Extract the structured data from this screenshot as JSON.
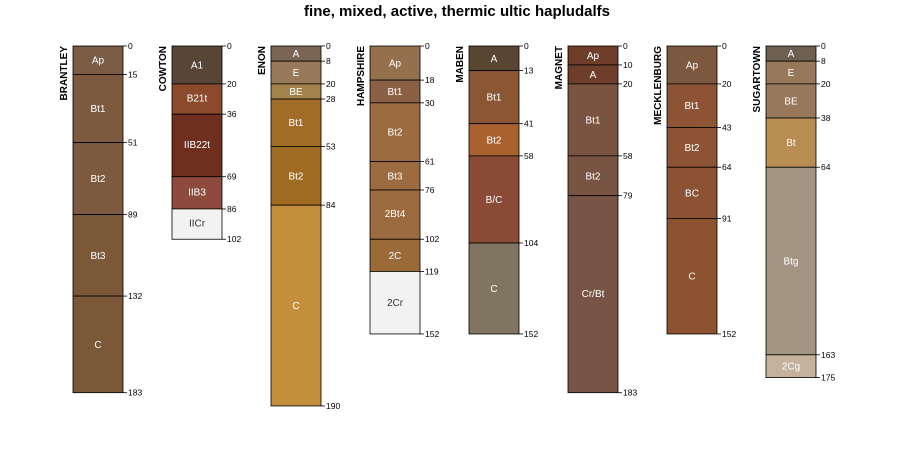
{
  "chart_data": {
    "type": "soil-profile-sketch",
    "title": "fine, mixed, active, thermic ultic hapludalfs",
    "depth_unit": "cm",
    "ylim": [
      0,
      190
    ],
    "profiles": [
      {
        "name": "BRANTLEY",
        "horizons": [
          {
            "name": "Ap",
            "top": 0,
            "bottom": 15,
            "color": "#7a5b44"
          },
          {
            "name": "Bt1",
            "top": 15,
            "bottom": 51,
            "color": "#7d5a3d"
          },
          {
            "name": "Bt2",
            "top": 51,
            "bottom": 89,
            "color": "#7d5a3d"
          },
          {
            "name": "Bt3",
            "top": 89,
            "bottom": 132,
            "color": "#7a5838"
          },
          {
            "name": "C",
            "top": 132,
            "bottom": 183,
            "color": "#7a5838"
          }
        ]
      },
      {
        "name": "COWTON",
        "horizons": [
          {
            "name": "A1",
            "top": 0,
            "bottom": 20,
            "color": "#574636"
          },
          {
            "name": "B21t",
            "top": 20,
            "bottom": 36,
            "color": "#8b4a2c"
          },
          {
            "name": "IIB22t",
            "top": 36,
            "bottom": 69,
            "color": "#6e2f1f"
          },
          {
            "name": "IIB3",
            "top": 69,
            "bottom": 86,
            "color": "#8e4b3d"
          },
          {
            "name": "IICr",
            "top": 86,
            "bottom": 102,
            "color": "#f2f2f2"
          }
        ]
      },
      {
        "name": "ENON",
        "horizons": [
          {
            "name": "A",
            "top": 0,
            "bottom": 8,
            "color": "#7a6554"
          },
          {
            "name": "E",
            "top": 8,
            "bottom": 20,
            "color": "#98795a"
          },
          {
            "name": "BE",
            "top": 20,
            "bottom": 28,
            "color": "#a3824c"
          },
          {
            "name": "Bt1",
            "top": 28,
            "bottom": 53,
            "color": "#a06c28"
          },
          {
            "name": "Bt2",
            "top": 53,
            "bottom": 84,
            "color": "#a06c22"
          },
          {
            "name": "C",
            "top": 84,
            "bottom": 190,
            "color": "#c48e3c"
          }
        ]
      },
      {
        "name": "HAMPSHIRE",
        "horizons": [
          {
            "name": "Ap",
            "top": 0,
            "bottom": 18,
            "color": "#94704c"
          },
          {
            "name": "Bt1",
            "top": 18,
            "bottom": 30,
            "color": "#8a6144"
          },
          {
            "name": "Bt2",
            "top": 30,
            "bottom": 61,
            "color": "#9c6c40"
          },
          {
            "name": "Bt3",
            "top": 61,
            "bottom": 76,
            "color": "#9c6c40"
          },
          {
            "name": "2Bt4",
            "top": 76,
            "bottom": 102,
            "color": "#9c6c40"
          },
          {
            "name": "2C",
            "top": 102,
            "bottom": 119,
            "color": "#9a6a38"
          },
          {
            "name": "2Cr",
            "top": 119,
            "bottom": 152,
            "color": "#f2f2f2"
          }
        ]
      },
      {
        "name": "MABEN",
        "horizons": [
          {
            "name": "A",
            "top": 0,
            "bottom": 13,
            "color": "#594632"
          },
          {
            "name": "Bt1",
            "top": 13,
            "bottom": 41,
            "color": "#8a5634"
          },
          {
            "name": "Bt2",
            "top": 41,
            "bottom": 58,
            "color": "#a9622e"
          },
          {
            "name": "B/C",
            "top": 58,
            "bottom": 104,
            "color": "#8a4a36"
          },
          {
            "name": "C",
            "top": 104,
            "bottom": 152,
            "color": "#807560"
          }
        ]
      },
      {
        "name": "MAGNET",
        "horizons": [
          {
            "name": "Ap",
            "top": 0,
            "bottom": 10,
            "color": "#6e3e2a"
          },
          {
            "name": "A",
            "top": 10,
            "bottom": 20,
            "color": "#6e3e2a"
          },
          {
            "name": "Bt1",
            "top": 20,
            "bottom": 58,
            "color": "#7a5440"
          },
          {
            "name": "Bt2",
            "top": 58,
            "bottom": 79,
            "color": "#785442"
          },
          {
            "name": "Cr/Bt",
            "top": 79,
            "bottom": 183,
            "color": "#785446"
          }
        ]
      },
      {
        "name": "MECKLENBURG",
        "horizons": [
          {
            "name": "Ap",
            "top": 0,
            "bottom": 20,
            "color": "#7d5840"
          },
          {
            "name": "Bt1",
            "top": 20,
            "bottom": 43,
            "color": "#8c5434"
          },
          {
            "name": "Bt2",
            "top": 43,
            "bottom": 64,
            "color": "#8c5434"
          },
          {
            "name": "BC",
            "top": 64,
            "bottom": 91,
            "color": "#8c5234"
          },
          {
            "name": "C",
            "top": 91,
            "bottom": 152,
            "color": "#8c5230"
          }
        ]
      },
      {
        "name": "SUGARTOWN",
        "horizons": [
          {
            "name": "A",
            "top": 0,
            "bottom": 8,
            "color": "#6e6050"
          },
          {
            "name": "E",
            "top": 8,
            "bottom": 20,
            "color": "#98785a"
          },
          {
            "name": "BE",
            "top": 20,
            "bottom": 38,
            "color": "#98785a"
          },
          {
            "name": "Bt",
            "top": 38,
            "bottom": 64,
            "color": "#b88c52"
          },
          {
            "name": "Btg",
            "top": 64,
            "bottom": 163,
            "color": "#a39482"
          },
          {
            "name": "2Cg",
            "top": 163,
            "bottom": 175,
            "color": "#c4b29c"
          }
        ]
      }
    ]
  }
}
